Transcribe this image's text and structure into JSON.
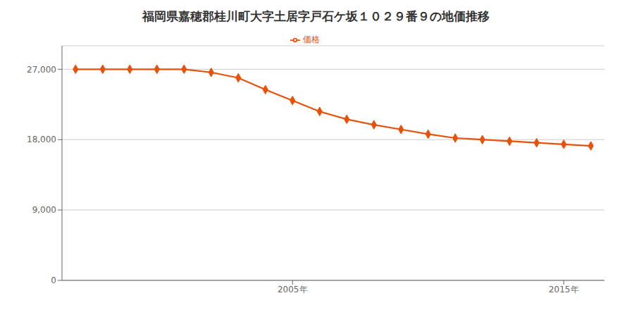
{
  "chart_data": {
    "type": "line",
    "title": "福岡県嘉穂郡桂川町大字土居字戸石ケ坂１０２９番９の地価推移",
    "x": [
      1997,
      1998,
      1999,
      2000,
      2001,
      2002,
      2003,
      2004,
      2005,
      2006,
      2007,
      2008,
      2009,
      2010,
      2011,
      2012,
      2013,
      2014,
      2015,
      2016
    ],
    "series": [
      {
        "name": "価格",
        "color": "#E8510A",
        "marker": "diamond",
        "values": [
          27000,
          27000,
          27000,
          27000,
          27000,
          26600,
          25900,
          24400,
          23000,
          21600,
          20600,
          19900,
          19300,
          18700,
          18200,
          18000,
          17800,
          17600,
          17400,
          17200
        ]
      }
    ],
    "xlim": [
      1996.5,
      2016.5
    ],
    "xticks": [
      {
        "value": 2005,
        "label": "2005年"
      },
      {
        "value": 2015,
        "label": "2015年"
      }
    ],
    "ylim": [
      0,
      30000
    ],
    "yticks": [
      0,
      {
        "value": 9000,
        "label": "9,000"
      },
      {
        "value": 18000,
        "label": "18,000"
      },
      {
        "value": 27000,
        "label": "27,000"
      }
    ],
    "grid": true,
    "legend": "top"
  }
}
